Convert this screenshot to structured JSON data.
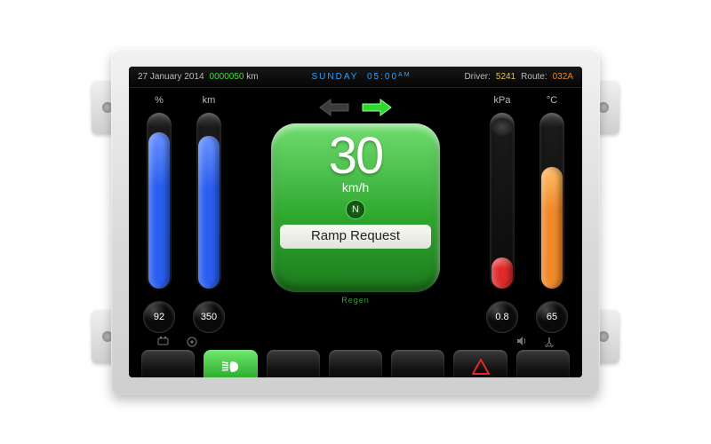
{
  "status": {
    "date": "27 January 2014",
    "odometer": "0000050",
    "odometer_unit": "km",
    "day": "SUNDAY",
    "time": "05:00",
    "ampm": "AM",
    "driver_label": "Driver:",
    "driver_id": "5241",
    "route_label": "Route:",
    "route_id": "032A",
    "colors": {
      "clock": "#2aa3ff",
      "odometer": "#3bdc3b",
      "driver": "#e2c24a",
      "route": "#e08a2a"
    }
  },
  "gauges": {
    "battery": {
      "label": "%",
      "value": "92",
      "fill_pct": 90,
      "color": "#2a5ef0",
      "highlight": "#6b93ff"
    },
    "range": {
      "label": "km",
      "value": "350",
      "fill_pct": 88,
      "color": "#2a5ef0",
      "highlight": "#6b93ff"
    },
    "pressure": {
      "label": "kPa",
      "value": "0.8",
      "fill_pct": 18,
      "color": "#e02a2a",
      "highlight": "#ff7a7a",
      "cap_color": "#1a1a1a"
    },
    "temp": {
      "label": "°C",
      "value": "65",
      "fill_pct": 70,
      "color": "#f08a2a",
      "highlight": "#ffc06a"
    }
  },
  "turn": {
    "left_active": false,
    "right_active": true,
    "inactive_color": "#3b3b3b",
    "active_color": "#2fd62f"
  },
  "speed": {
    "value": "30",
    "unit": "km/h",
    "gear": "N",
    "message": "Ramp Request",
    "regen_label": "Regen",
    "box_gradient": [
      "#6fdc6f",
      "#2fa82f",
      "#1c7a1c"
    ]
  },
  "bottom_icons": {
    "battery": "battery-icon",
    "wheel": "wheel-icon",
    "speaker": "speaker-icon",
    "temp": "temp-icon"
  },
  "buttons": [
    {
      "name": "btn-1",
      "icon": null,
      "color": null
    },
    {
      "name": "btn-headlight",
      "icon": "headlight",
      "color": "#3bdc3b"
    },
    {
      "name": "btn-3",
      "icon": null,
      "color": null
    },
    {
      "name": "btn-4",
      "icon": null,
      "color": null
    },
    {
      "name": "btn-5",
      "icon": null,
      "color": null
    },
    {
      "name": "btn-hazard",
      "icon": "hazard",
      "color": "#e02a2a"
    },
    {
      "name": "btn-7",
      "icon": null,
      "color": null
    }
  ]
}
